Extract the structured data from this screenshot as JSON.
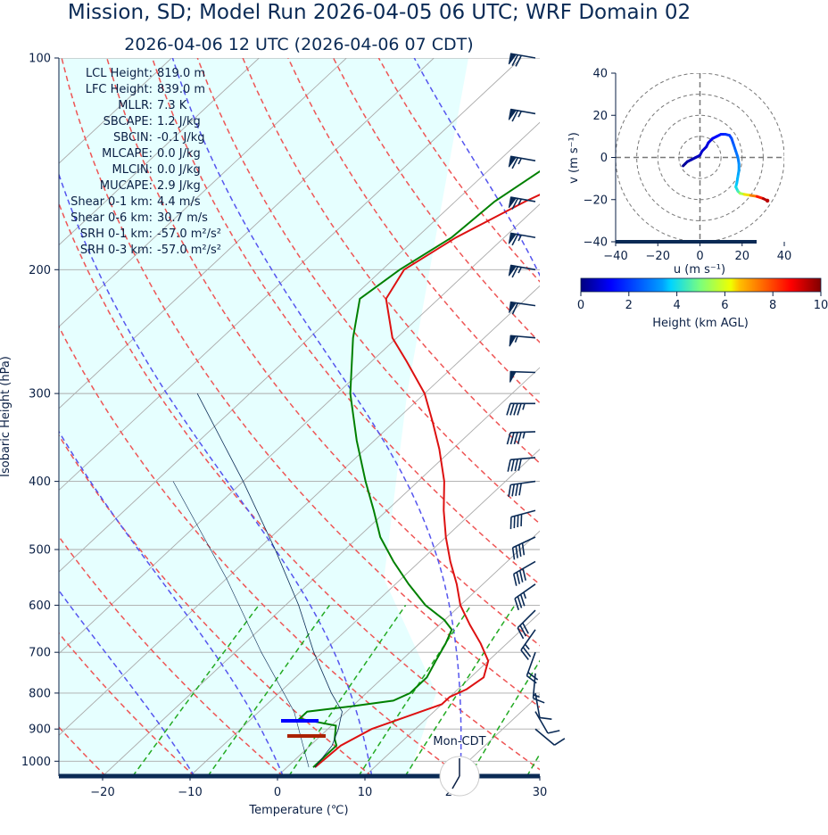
{
  "title_main": "Mission, SD; Model Run 2026-04-05 06 UTC; WRF Domain 02",
  "title_valid": "2026-04-06 12 UTC  (2026-04-06 07 CDT)",
  "colors": {
    "title": "#0a2a55",
    "temperature": "#dd1111",
    "dewpoint": "#008000",
    "dry_adiabat": "#ee5555",
    "moist_adiabat": "#5555ee",
    "mixing_ratio": "#22aa22",
    "isotherm": "#aaaaaa",
    "cape_fill": "#e6ffff",
    "barb": "#0a2a55"
  },
  "indices": [
    {
      "label": "LCL Height:",
      "value": "819.0 m"
    },
    {
      "label": "LFC Height:",
      "value": "839.0 m"
    },
    {
      "label": "MLLR:",
      "value": "7.3 K"
    },
    {
      "label": "SBCAPE:",
      "value": "1.2 J/kg"
    },
    {
      "label": "SBCIN:",
      "value": "-0.1 J/kg"
    },
    {
      "label": "MLCAPE:",
      "value": "0.0 J/kg"
    },
    {
      "label": "MLCIN:",
      "value": "0.0 J/kg"
    },
    {
      "label": "MUCAPE:",
      "value": "2.9 J/kg"
    },
    {
      "label": "Shear 0-1 km:",
      "value": "4.4 m/s"
    },
    {
      "label": "Shear 0-6 km:",
      "value": "30.7 m/s"
    },
    {
      "label": "SRH 0-1 km:",
      "value": "-57.0 m²/s²"
    },
    {
      "label": "SRH 0-3 km:",
      "value": "-57.0 m²/s²"
    }
  ],
  "clock_label": "Mon-CDT",
  "chart_data": [
    {
      "type": "line",
      "subtype": "skew-t log-p",
      "xlabel": "Temperature (℃)",
      "ylabel": "Isobaric Height (hPa)",
      "xlim": [
        -25,
        30
      ],
      "ylim_hpa": [
        1050,
        100
      ],
      "x_ticks": [
        "−20",
        "−10",
        "0",
        "10",
        "20",
        "30"
      ],
      "x_tick_values": [
        -20,
        -10,
        0,
        10,
        20,
        30
      ],
      "p_ticks": [
        100,
        200,
        300,
        400,
        500,
        600,
        700,
        800,
        900,
        1000
      ],
      "series": [
        {
          "key": "temperature",
          "p": [
            1020,
            950,
            900,
            850,
            830,
            810,
            790,
            760,
            720,
            680,
            640,
            600,
            560,
            520,
            480,
            440,
            400,
            360,
            330,
            300,
            270,
            250,
            220,
            200,
            180,
            160,
            140,
            120,
            100
          ],
          "t": [
            3.2,
            3.5,
            5.0,
            8.5,
            10.0,
            10.0,
            11.0,
            11.5,
            10.0,
            7.0,
            3.5,
            0.0,
            -3.0,
            -6.5,
            -10.0,
            -13.5,
            -17.0,
            -21.5,
            -25.5,
            -30.0,
            -36.0,
            -40.5,
            -46.0,
            -47.5,
            -45.5,
            -42.0,
            -37.0,
            -32.0,
            -29.0
          ]
        },
        {
          "key": "dewpoint",
          "p": [
            1020,
            950,
            930,
            890,
            870,
            850,
            835,
            820,
            800,
            760,
            720,
            680,
            650,
            630,
            600,
            560,
            520,
            480,
            440,
            400,
            350,
            300,
            250,
            220,
            200,
            180,
            160,
            140,
            120,
            100
          ],
          "t": [
            3.0,
            3.0,
            2.0,
            0.5,
            -4.5,
            -4.5,
            0.0,
            4.0,
            5.0,
            5.0,
            4.0,
            3.0,
            2.0,
            0.0,
            -4.0,
            -8.5,
            -13.0,
            -17.5,
            -21.5,
            -26.0,
            -32.0,
            -38.5,
            -45.0,
            -49.0,
            -48.0,
            -46.0,
            -45.5,
            -43.5,
            -42.5,
            -42.0
          ]
        },
        {
          "key": "parcel",
          "p": [
            1020,
            950,
            900,
            850,
            800,
            700,
            600,
            500,
            400,
            300
          ],
          "t": [
            3.2,
            2.5,
            1.2,
            -0.5,
            -4.0,
            -11.0,
            -18.5,
            -28.0,
            -40.0,
            -56.0
          ]
        }
      ],
      "isotherms": [
        -100,
        -90,
        -80,
        -70,
        -60,
        -50,
        -40,
        -30,
        -20,
        -10,
        0,
        10,
        20,
        30,
        40
      ],
      "dry_adiabats_thetaK": [
        250,
        260,
        270,
        280,
        290,
        300,
        310,
        320,
        330,
        340,
        350,
        360,
        370,
        380
      ],
      "moist_adiabats_thetaK": [
        260,
        270,
        280,
        290,
        300,
        310
      ],
      "mixing_ratio_lines_gkg": [
        1,
        2,
        4,
        7,
        10,
        16,
        24
      ],
      "lcl_marker": {
        "p": 905,
        "t_from": 1.5,
        "t_to": 5.0
      },
      "lfc_marker": {
        "p": 920,
        "t_from": 1.0,
        "t_to": 5.5
      },
      "wind_barbs": [
        {
          "p": 100,
          "speed_kt": 70,
          "dir": 280
        },
        {
          "p": 120,
          "speed_kt": 65,
          "dir": 280
        },
        {
          "p": 140,
          "speed_kt": 65,
          "dir": 280
        },
        {
          "p": 160,
          "speed_kt": 65,
          "dir": 280
        },
        {
          "p": 180,
          "speed_kt": 65,
          "dir": 280
        },
        {
          "p": 200,
          "speed_kt": 65,
          "dir": 280
        },
        {
          "p": 225,
          "speed_kt": 60,
          "dir": 278
        },
        {
          "p": 250,
          "speed_kt": 55,
          "dir": 275
        },
        {
          "p": 280,
          "speed_kt": 50,
          "dir": 272
        },
        {
          "p": 310,
          "speed_kt": 45,
          "dir": 270
        },
        {
          "p": 340,
          "speed_kt": 45,
          "dir": 268
        },
        {
          "p": 370,
          "speed_kt": 40,
          "dir": 265
        },
        {
          "p": 400,
          "speed_kt": 40,
          "dir": 262
        },
        {
          "p": 440,
          "speed_kt": 40,
          "dir": 255
        },
        {
          "p": 480,
          "speed_kt": 40,
          "dir": 245
        },
        {
          "p": 520,
          "speed_kt": 40,
          "dir": 240
        },
        {
          "p": 560,
          "speed_kt": 35,
          "dir": 235
        },
        {
          "p": 610,
          "speed_kt": 30,
          "dir": 225
        },
        {
          "p": 650,
          "speed_kt": 25,
          "dir": 215
        },
        {
          "p": 700,
          "speed_kt": 20,
          "dir": 200
        },
        {
          "p": 750,
          "speed_kt": 15,
          "dir": 185
        },
        {
          "p": 800,
          "speed_kt": 10,
          "dir": 170
        },
        {
          "p": 850,
          "speed_kt": 10,
          "dir": 150
        },
        {
          "p": 900,
          "speed_kt": 10,
          "dir": 130
        }
      ]
    },
    {
      "type": "line",
      "subtype": "hodograph",
      "xlabel": "u (m s⁻¹)",
      "ylabel": "v (m s⁻¹)",
      "xlim": [
        -40,
        40
      ],
      "ylim": [
        -40,
        40
      ],
      "x_ticks": [
        "−40",
        "−20",
        "0",
        "20",
        "40"
      ],
      "x_tick_values": [
        -40,
        -20,
        0,
        20,
        40
      ],
      "y_ticks": [
        "−40",
        "−20",
        "0",
        "20",
        "40"
      ],
      "y_tick_values": [
        -40,
        -20,
        0,
        20,
        40
      ],
      "rings": [
        10,
        20,
        30,
        40
      ],
      "u": [
        -8,
        -7,
        -6,
        -4,
        -2,
        0,
        1,
        3,
        4,
        6,
        8,
        10,
        12,
        14,
        15,
        16,
        17,
        18,
        18.5,
        18.5,
        18,
        17.5,
        17,
        18,
        19,
        21,
        24,
        27,
        30,
        32
      ],
      "v": [
        -4,
        -3,
        -2,
        -1,
        0,
        1,
        3,
        5,
        7,
        9,
        10,
        11,
        11,
        10.5,
        9,
        6,
        3,
        0,
        -3,
        -6,
        -9,
        -12,
        -14,
        -16,
        -17,
        -17.5,
        -18,
        -18.5,
        -19.5,
        -20.5
      ],
      "height_km": [
        0.1,
        0.2,
        0.3,
        0.4,
        0.5,
        0.6,
        0.7,
        0.8,
        0.9,
        1.0,
        1.2,
        1.4,
        1.6,
        1.8,
        2.0,
        2.2,
        2.4,
        2.6,
        2.8,
        3.0,
        3.2,
        3.4,
        3.6,
        4.0,
        4.5,
        5.5,
        6.5,
        7.5,
        8.5,
        9.5
      ]
    },
    {
      "type": "colorbar",
      "label": "Height (km AGL)",
      "range": [
        0,
        10
      ],
      "ticks": [
        "0",
        "2",
        "4",
        "6",
        "8",
        "10"
      ],
      "tick_values": [
        0,
        2,
        4,
        6,
        8,
        10
      ]
    }
  ]
}
